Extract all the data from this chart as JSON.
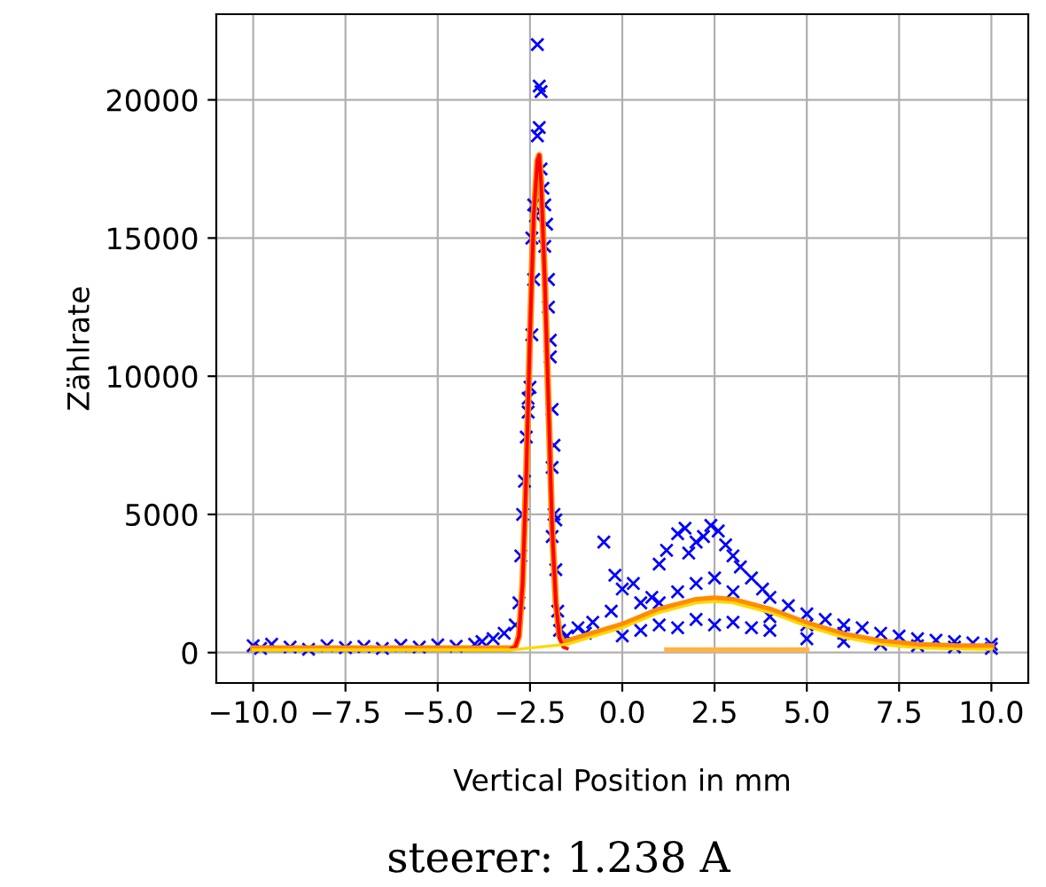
{
  "chart_data": {
    "type": "scatter",
    "xlabel": "Vertical Position in mm",
    "ylabel": "Zählrate",
    "annotations": [
      "steerer: 1.238 A"
    ],
    "xlim": [
      -11,
      11
    ],
    "xticks": [
      {
        "value": -10,
        "label": "−10.0"
      },
      {
        "value": -7.5,
        "label": "−7.5"
      },
      {
        "value": -5,
        "label": "−5.0"
      },
      {
        "value": -2.5,
        "label": "−2.5"
      },
      {
        "value": 0,
        "label": "0.0"
      },
      {
        "value": 2.5,
        "label": "2.5"
      },
      {
        "value": 5,
        "label": "5.0"
      },
      {
        "value": 7.5,
        "label": "7.5"
      },
      {
        "value": 10,
        "label": "10.0"
      }
    ],
    "ylim": [
      -1100,
      23100
    ],
    "yticks": [
      0,
      5000,
      10000,
      15000,
      20000
    ],
    "grid": true,
    "line_style": "solid",
    "series": [
      {
        "marker": "cross",
        "color": "#0000ff",
        "x": [
          -10,
          -9.8,
          -9.5,
          -9,
          -8.5,
          -8,
          -7.5,
          -7,
          -6.5,
          -6,
          -5.5,
          -5,
          -4.5,
          -4,
          -3.8,
          -3.5,
          -3.2,
          -2.9,
          -2.8,
          -2.75,
          -2.7,
          -2.65,
          -2.6,
          -2.55,
          -2.5,
          -2.55,
          -2.45,
          -2.4,
          -2.45,
          -2.35,
          -2.4,
          -2.3,
          -2.25,
          -2.2,
          -2.25,
          -2.3,
          -2.2,
          -2.15,
          -2.1,
          -2.05,
          -2.1,
          -2.0,
          -2.0,
          -1.95,
          -1.95,
          -1.9,
          -1.85,
          -1.9,
          -1.85,
          -1.8,
          -1.9,
          -1.8,
          -1.75,
          -1.7,
          -1.5,
          -1.2,
          -1,
          -0.8,
          -0.5,
          -0.3,
          -0.2,
          0,
          0.3,
          0.5,
          0.8,
          1,
          1.2,
          1.5,
          1.7,
          1.8,
          2,
          2.2,
          2.4,
          2.6,
          2.8,
          3,
          3.2,
          3.5,
          3.8,
          4,
          4.5,
          5,
          5.5,
          6,
          6.5,
          7,
          7.5,
          8,
          8.5,
          9,
          9.5,
          10,
          0,
          0.5,
          1,
          1.5,
          2,
          2.5,
          3,
          3.5,
          4,
          5,
          6,
          7,
          8,
          9,
          10,
          1,
          1.5,
          2,
          2.5,
          3,
          4,
          5,
          6
        ],
        "values": [
          250,
          150,
          300,
          200,
          120,
          250,
          180,
          220,
          150,
          260,
          200,
          280,
          230,
          300,
          400,
          500,
          700,
          1000,
          1800,
          3500,
          5000,
          6200,
          7800,
          8700,
          9600,
          9200,
          11500,
          13500,
          15000,
          15800,
          16200,
          22000,
          20500,
          20300,
          19000,
          18700,
          17500,
          16800,
          16200,
          15500,
          14700,
          13500,
          12500,
          11300,
          10700,
          8800,
          7500,
          6700,
          5000,
          4800,
          4200,
          3000,
          1500,
          800,
          600,
          900,
          700,
          1100,
          4000,
          1500,
          2800,
          2300,
          2500,
          1800,
          2000,
          3200,
          3700,
          4300,
          4500,
          3600,
          4000,
          4200,
          4600,
          4400,
          3900,
          3500,
          3100,
          2700,
          2300,
          2000,
          1700,
          1400,
          1200,
          1000,
          900,
          700,
          600,
          500,
          450,
          400,
          350,
          300,
          600,
          800,
          1000,
          900,
          1200,
          1000,
          1100,
          900,
          800,
          500,
          400,
          300,
          250,
          200,
          150,
          1800,
          2200,
          2500,
          2700,
          2200,
          1300,
          1000,
          700
        ]
      },
      {
        "type": "line",
        "color": "#ff0000",
        "x": [
          -3,
          -2.9,
          -2.8,
          -2.7,
          -2.6,
          -2.5,
          -2.4,
          -2.3,
          -2.25,
          -2.2,
          -2.1,
          -2.0,
          -1.9,
          -1.8,
          -1.7,
          -1.6,
          -1.5
        ],
        "values": [
          150,
          200,
          600,
          2500,
          6500,
          11500,
          15800,
          17800,
          18000,
          17000,
          13500,
          9000,
          4500,
          1800,
          500,
          200,
          150
        ]
      },
      {
        "type": "line",
        "color": "#ffd700",
        "x": [
          -10,
          -3,
          -1.5,
          0,
          1,
          2,
          2.5,
          3,
          4,
          5,
          6,
          7,
          8,
          9,
          10
        ],
        "values": [
          100,
          100,
          300,
          900,
          1450,
          1800,
          1850,
          1800,
          1450,
          950,
          550,
          300,
          170,
          130,
          120
        ]
      },
      {
        "type": "line",
        "color": "#ffb347",
        "x": [
          1.2,
          5
        ],
        "values": [
          100,
          100
        ]
      },
      {
        "type": "line",
        "color": "#ff8c00",
        "x": [
          -10,
          -3,
          -2.9,
          -2.8,
          -2.7,
          -2.6,
          -2.5,
          -2.4,
          -2.3,
          -2.25,
          -2.2,
          -2.1,
          -2.0,
          -1.9,
          -1.8,
          -1.7,
          -1.6,
          -1.5,
          0,
          1,
          2,
          2.5,
          3,
          4,
          5,
          6,
          7,
          8,
          9,
          10
        ],
        "values": [
          150,
          150,
          200,
          600,
          2500,
          6500,
          11500,
          15800,
          17800,
          18000,
          17000,
          13500,
          9000,
          4500,
          1800,
          600,
          400,
          400,
          1000,
          1550,
          1900,
          1950,
          1900,
          1550,
          1050,
          650,
          400,
          270,
          230,
          220
        ]
      }
    ]
  }
}
